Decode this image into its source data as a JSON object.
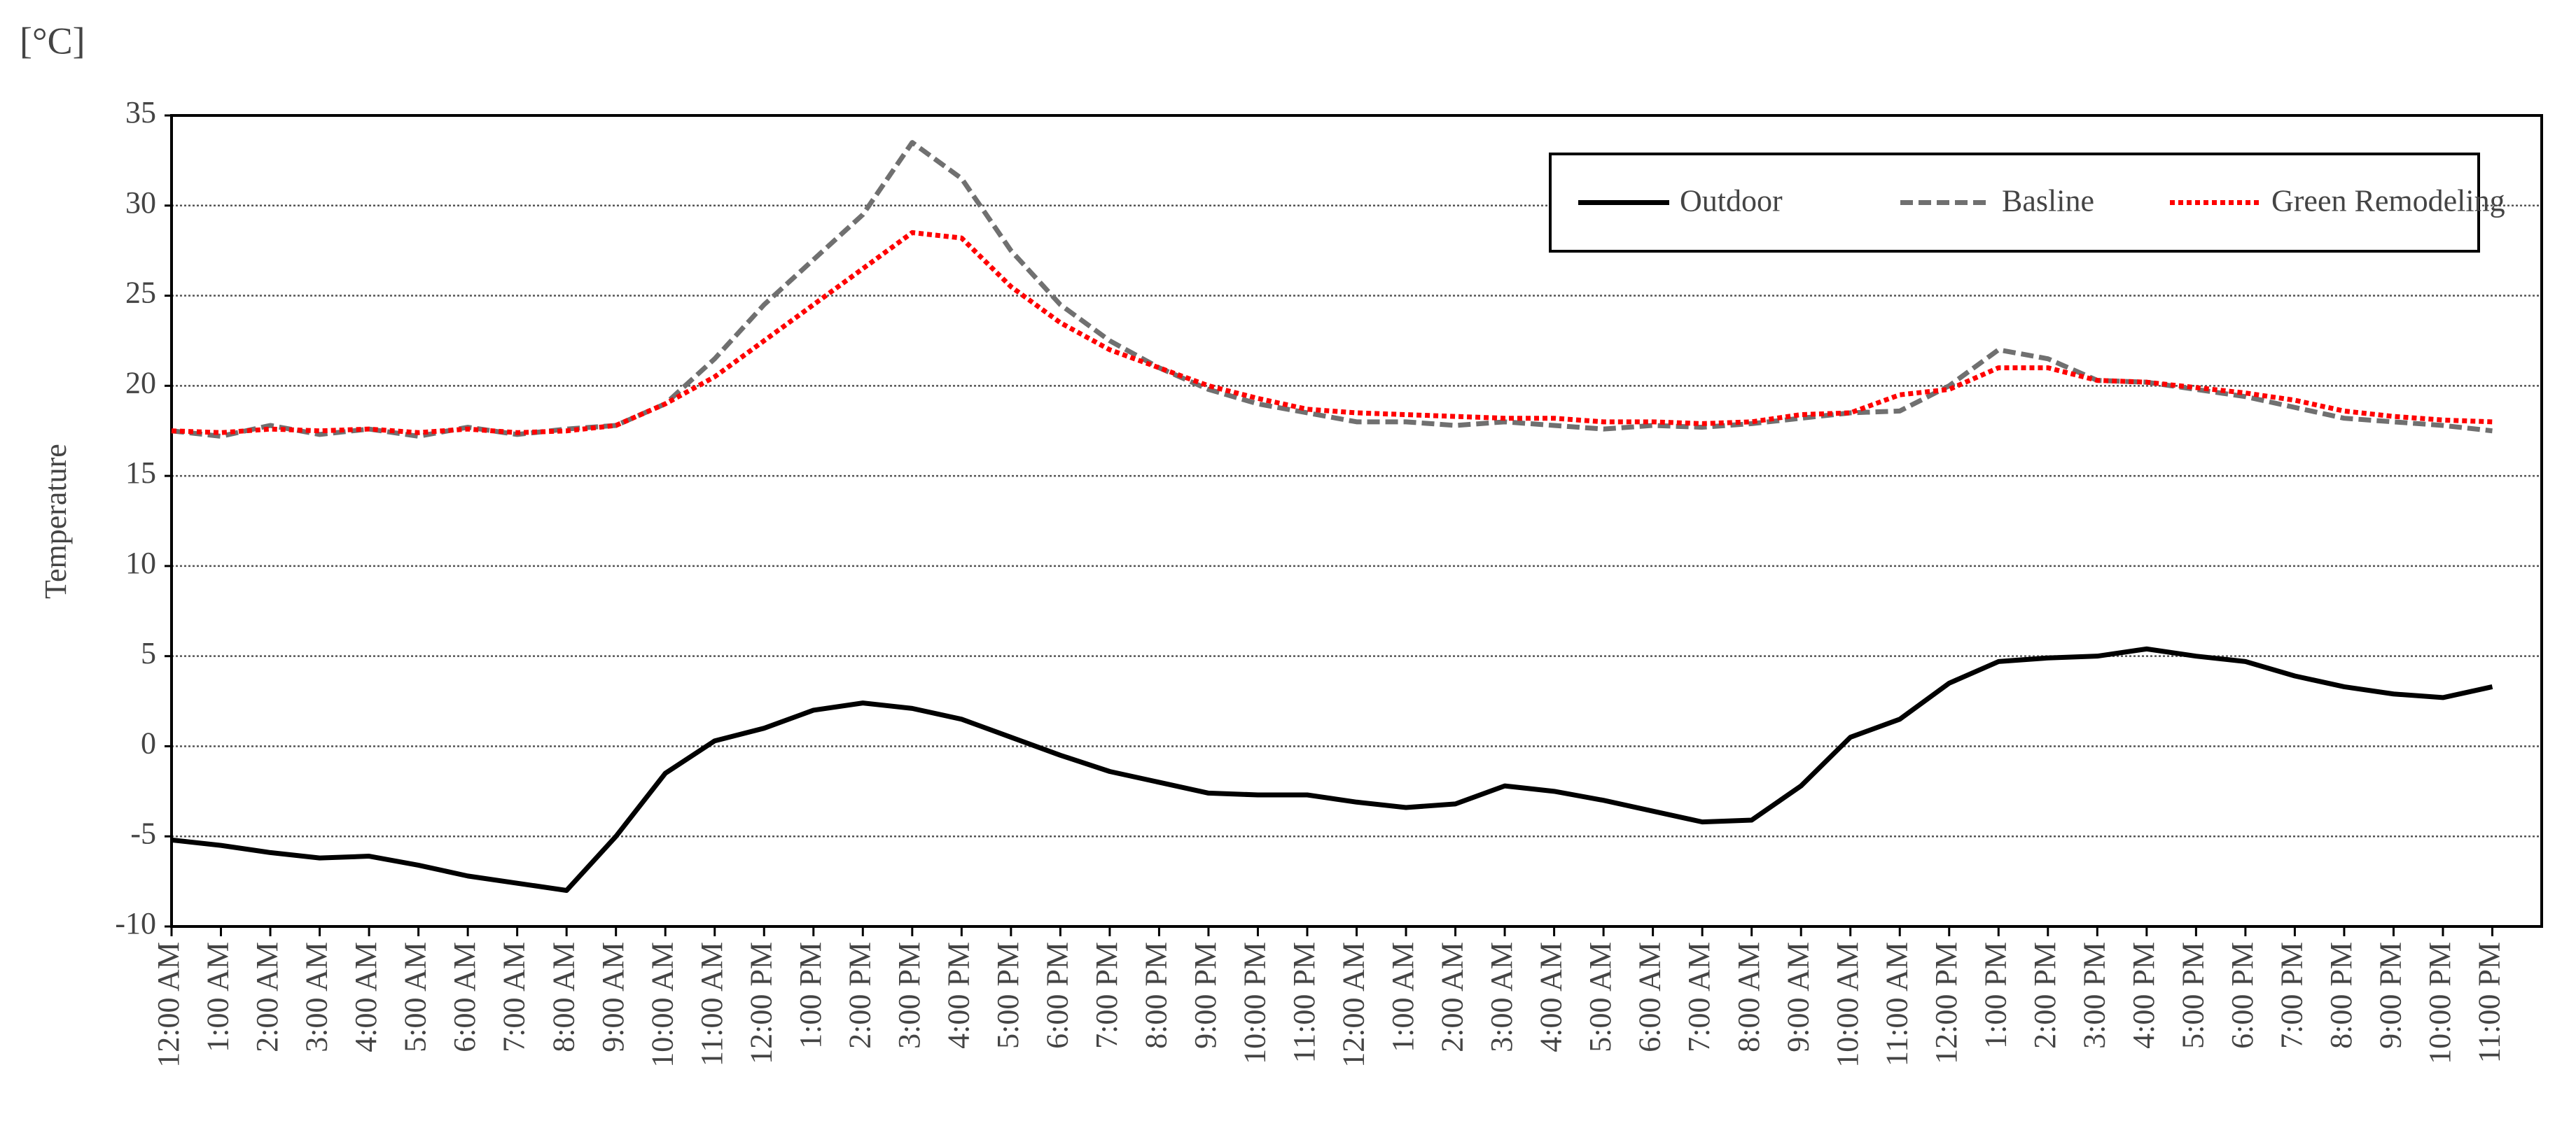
{
  "chart_data": {
    "type": "line",
    "unit_label": "[°C]",
    "y_label": "Temperature",
    "categories": [
      "12:00 AM",
      "1:00 AM",
      "2:00 AM",
      "3:00 AM",
      "4:00 AM",
      "5:00 AM",
      "6:00 AM",
      "7:00 AM",
      "8:00 AM",
      "9:00 AM",
      "10:00 AM",
      "11:00 AM",
      "12:00 PM",
      "1:00 PM",
      "2:00 PM",
      "3:00 PM",
      "4:00 PM",
      "5:00 PM",
      "6:00 PM",
      "7:00 PM",
      "8:00 PM",
      "9:00 PM",
      "10:00 PM",
      "11:00 PM",
      "12:00 AM",
      "1:00 AM",
      "2:00 AM",
      "3:00 AM",
      "4:00 AM",
      "5:00 AM",
      "6:00 AM",
      "7:00 AM",
      "8:00 AM",
      "9:00 AM",
      "10:00 AM",
      "11:00 AM",
      "12:00 PM",
      "1:00 PM",
      "2:00 PM",
      "3:00 PM",
      "4:00 PM",
      "5:00 PM",
      "6:00 PM",
      "7:00 PM",
      "8:00 PM",
      "9:00 PM",
      "10:00 PM",
      "11:00 PM"
    ],
    "series": [
      {
        "name": "Outdoor",
        "color": "#000000",
        "linestyle": "solid",
        "values": [
          -5.2,
          -5.5,
          -5.9,
          -6.2,
          -6.1,
          -6.6,
          -7.2,
          -7.6,
          -8.0,
          -5.0,
          -1.5,
          0.3,
          1.0,
          2.0,
          2.4,
          2.1,
          1.5,
          0.5,
          -0.5,
          -1.4,
          -2.0,
          -2.6,
          -2.7,
          -2.7,
          -3.1,
          -3.4,
          -3.2,
          -2.2,
          -2.5,
          -3.0,
          -3.6,
          -4.2,
          -4.1,
          -2.2,
          0.5,
          1.5,
          3.5,
          4.7,
          4.9,
          5.0,
          5.4,
          5.0,
          4.7,
          3.9,
          3.3,
          2.9,
          2.7,
          3.3
        ]
      },
      {
        "name": "Basline",
        "color": "#707070",
        "linestyle": "dashed",
        "values": [
          17.5,
          17.2,
          17.8,
          17.3,
          17.6,
          17.2,
          17.7,
          17.3,
          17.6,
          17.8,
          19.0,
          21.5,
          24.5,
          27.0,
          29.5,
          33.5,
          31.5,
          27.5,
          24.5,
          22.5,
          21.0,
          19.8,
          19.0,
          18.5,
          18.0,
          18.0,
          17.8,
          18.0,
          17.8,
          17.6,
          17.8,
          17.7,
          17.9,
          18.2,
          18.5,
          18.6,
          20.0,
          22.0,
          21.5,
          20.3,
          20.2,
          19.8,
          19.4,
          18.8,
          18.2,
          18.0,
          17.8,
          17.5
        ]
      },
      {
        "name": "Green Remodeling",
        "color": "#ff0000",
        "linestyle": "dotted",
        "values": [
          17.5,
          17.4,
          17.6,
          17.5,
          17.6,
          17.4,
          17.6,
          17.4,
          17.5,
          17.8,
          19.0,
          20.5,
          22.5,
          24.5,
          26.5,
          28.5,
          28.2,
          25.5,
          23.5,
          22.0,
          21.0,
          20.0,
          19.3,
          18.7,
          18.5,
          18.4,
          18.3,
          18.2,
          18.2,
          18.0,
          18.0,
          17.9,
          18.0,
          18.4,
          18.5,
          19.5,
          19.8,
          21.0,
          21.0,
          20.3,
          20.2,
          19.9,
          19.6,
          19.2,
          18.6,
          18.3,
          18.1,
          18.0
        ]
      }
    ],
    "ylim": [
      -10,
      35
    ],
    "yticks": [
      -10,
      -5,
      0,
      5,
      10,
      15,
      20,
      25,
      30,
      35
    ],
    "grid": true,
    "legend": "upper right"
  }
}
